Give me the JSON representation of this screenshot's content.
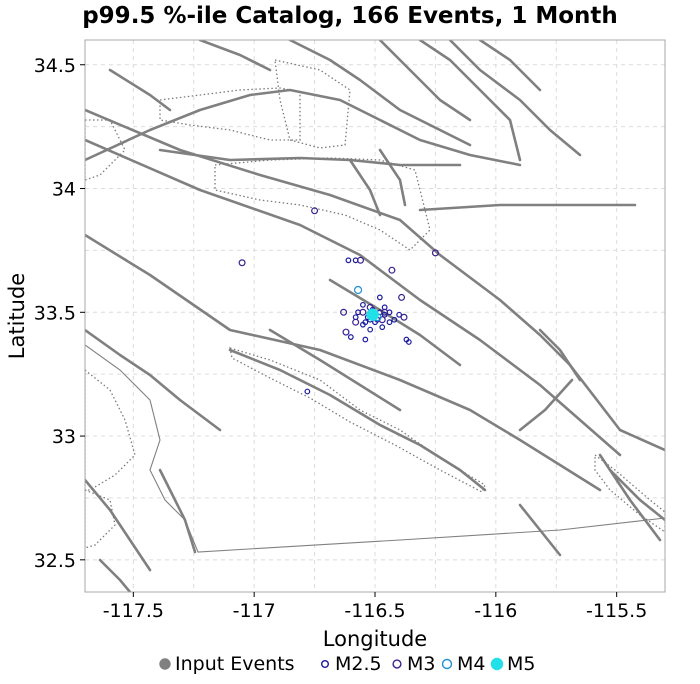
{
  "chart_data": {
    "type": "scatter",
    "title": "p99.5 %-ile Catalog, 166 Events, 1 Month",
    "xlabel": "Longitude",
    "ylabel": "Latitude",
    "xlim": [
      -117.7,
      -115.3
    ],
    "ylim": [
      32.37,
      34.6
    ],
    "xticks": [
      {
        "value": -117.5,
        "label": "-117.5"
      },
      {
        "value": -117.0,
        "label": "-117"
      },
      {
        "value": -116.5,
        "label": "-116.5"
      },
      {
        "value": -116.0,
        "label": "-116"
      },
      {
        "value": -115.5,
        "label": "-115.5"
      }
    ],
    "yticks": [
      {
        "value": 32.5,
        "label": "32.5"
      },
      {
        "value": 33.0,
        "label": "33"
      },
      {
        "value": 33.5,
        "label": "33.5"
      },
      {
        "value": 34.0,
        "label": "34"
      },
      {
        "value": 34.5,
        "label": "34.5"
      }
    ],
    "grid": true,
    "legend_position": "bottom",
    "series": [
      {
        "name": "Input Events",
        "color": "#808080",
        "marker": "filled-circle",
        "points": []
      },
      {
        "name": "M2.5",
        "color": "#1a1aa0",
        "marker": "open-circle",
        "points": [
          [
            -116.78,
            33.18
          ],
          [
            -116.55,
            33.45
          ],
          [
            -116.52,
            33.43
          ],
          [
            -116.6,
            33.4
          ],
          [
            -116.54,
            33.39
          ],
          [
            -116.47,
            33.44
          ],
          [
            -116.44,
            33.46
          ],
          [
            -116.46,
            33.52
          ],
          [
            -116.48,
            33.56
          ],
          [
            -116.58,
            33.71
          ],
          [
            -116.61,
            33.71
          ],
          [
            -116.37,
            33.39
          ],
          [
            -116.36,
            33.38
          ],
          [
            -116.44,
            33.5
          ],
          [
            -116.42,
            33.47
          ],
          [
            -116.57,
            33.5
          ],
          [
            -116.49,
            33.47
          ],
          [
            -116.5,
            33.46
          ],
          [
            -116.53,
            33.48
          ],
          [
            -116.58,
            33.48
          ],
          [
            -116.46,
            33.49
          ],
          [
            -116.55,
            33.53
          ],
          [
            -116.51,
            33.51
          ],
          [
            -116.48,
            33.5
          ],
          [
            -116.54,
            33.46
          ],
          [
            -116.4,
            33.49
          ],
          [
            -116.52,
            33.47
          ]
        ]
      },
      {
        "name": "M3",
        "color": "#3a2090",
        "marker": "open-circle",
        "points": [
          [
            -117.05,
            33.7
          ],
          [
            -116.75,
            33.91
          ],
          [
            -116.56,
            33.71
          ],
          [
            -116.25,
            33.74
          ],
          [
            -116.62,
            33.42
          ],
          [
            -116.63,
            33.5
          ],
          [
            -116.55,
            33.5
          ],
          [
            -116.52,
            33.52
          ],
          [
            -116.47,
            33.47
          ],
          [
            -116.38,
            33.48
          ],
          [
            -116.43,
            33.67
          ],
          [
            -116.39,
            33.56
          ],
          [
            -116.5,
            33.49
          ],
          [
            -116.46,
            33.5
          ],
          [
            -116.58,
            33.46
          ]
        ]
      },
      {
        "name": "M4",
        "color": "#1f8fd6",
        "marker": "open-circle",
        "points": [
          [
            -116.57,
            33.59
          ],
          [
            -116.51,
            33.49
          ],
          [
            -116.49,
            33.48
          ]
        ]
      },
      {
        "name": "M5",
        "color": "#21e0e8",
        "marker": "filled-circle",
        "points": [
          [
            -116.51,
            33.49
          ]
        ]
      }
    ]
  }
}
